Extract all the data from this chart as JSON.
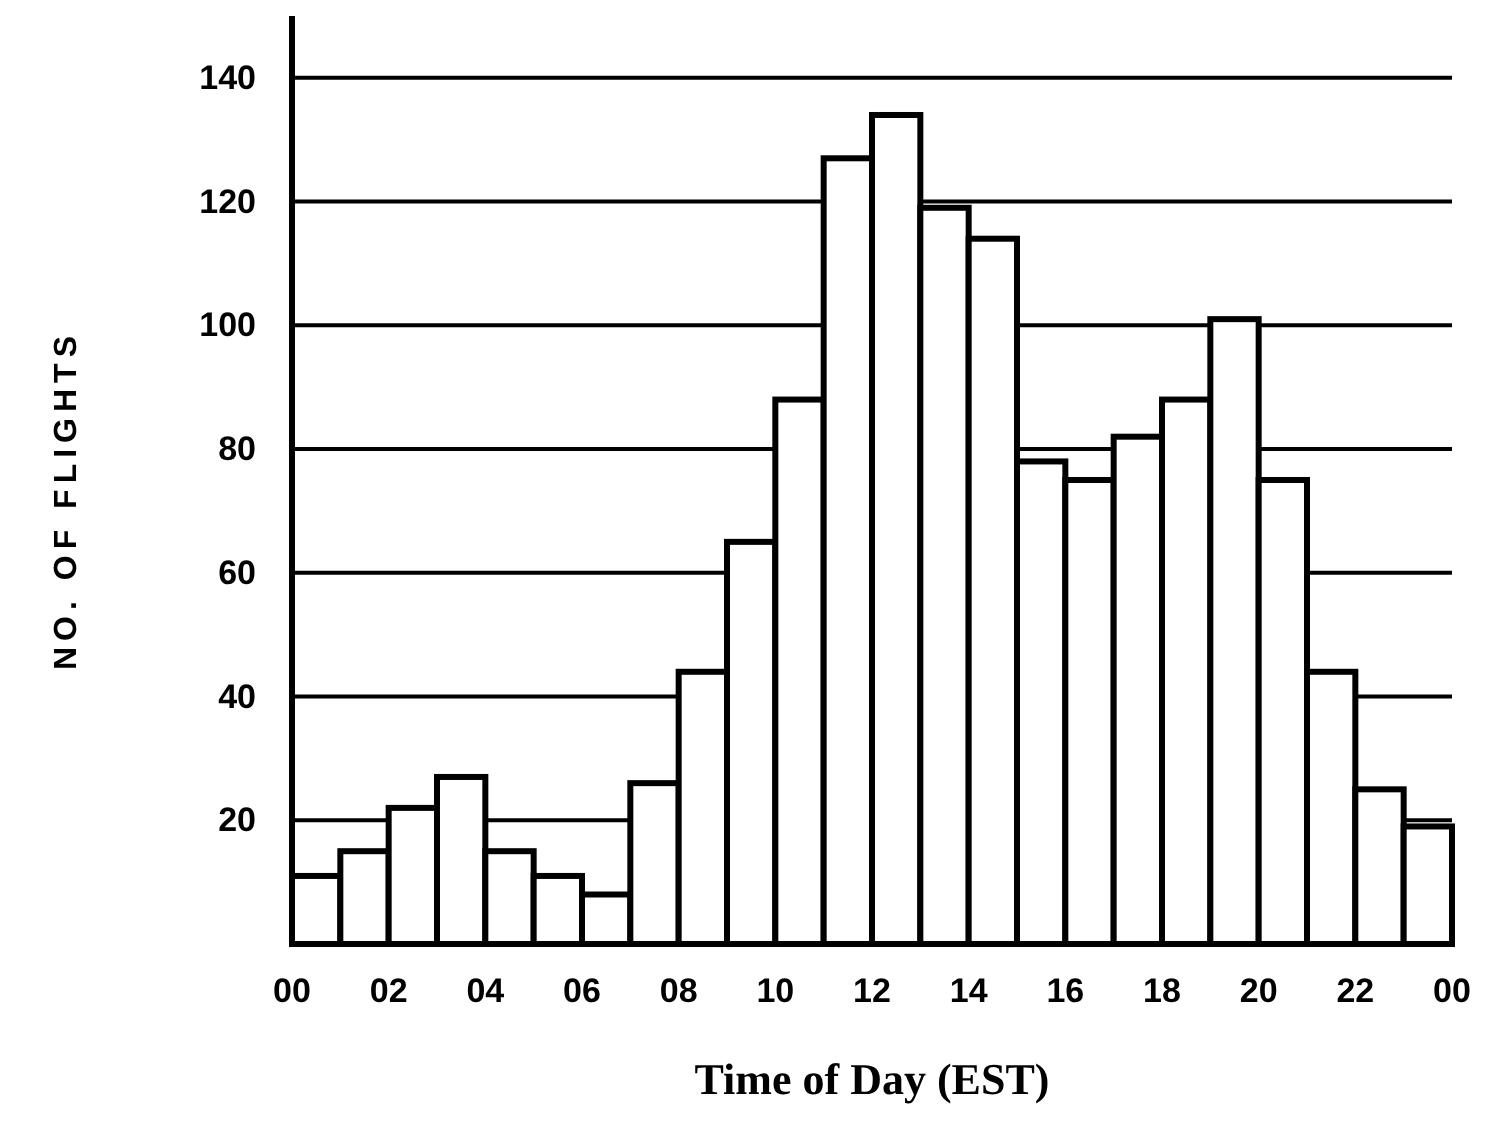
{
  "chart_data": {
    "type": "histogram",
    "xlabel": "Time of Day (EST)",
    "ylabel": "NO. OF FLIGHTS",
    "bins": [
      0,
      1,
      2,
      3,
      4,
      5,
      6,
      7,
      8,
      9,
      10,
      11,
      12,
      13,
      14,
      15,
      16,
      17,
      18,
      19,
      20,
      21,
      22,
      23,
      24
    ],
    "values": [
      11,
      15,
      22,
      27,
      15,
      11,
      8,
      26,
      44,
      65,
      88,
      127,
      134,
      119,
      114,
      78,
      75,
      82,
      88,
      101,
      75,
      44,
      25,
      19
    ],
    "color": "#ffffff",
    "xlim": [
      0,
      24
    ],
    "xticks": [
      {
        "value": 0,
        "label": "00"
      },
      {
        "value": 2,
        "label": "02"
      },
      {
        "value": 4,
        "label": "04"
      },
      {
        "value": 6,
        "label": "06"
      },
      {
        "value": 8,
        "label": "08"
      },
      {
        "value": 10,
        "label": "10"
      },
      {
        "value": 12,
        "label": "12"
      },
      {
        "value": 14,
        "label": "14"
      },
      {
        "value": 16,
        "label": "16"
      },
      {
        "value": 18,
        "label": "18"
      },
      {
        "value": 20,
        "label": "20"
      },
      {
        "value": 22,
        "label": "22"
      },
      {
        "value": 24,
        "label": "00"
      }
    ],
    "ylim": [
      0,
      150
    ],
    "yticks": [
      20,
      40,
      60,
      80,
      100,
      120,
      140
    ],
    "grid": "y"
  }
}
